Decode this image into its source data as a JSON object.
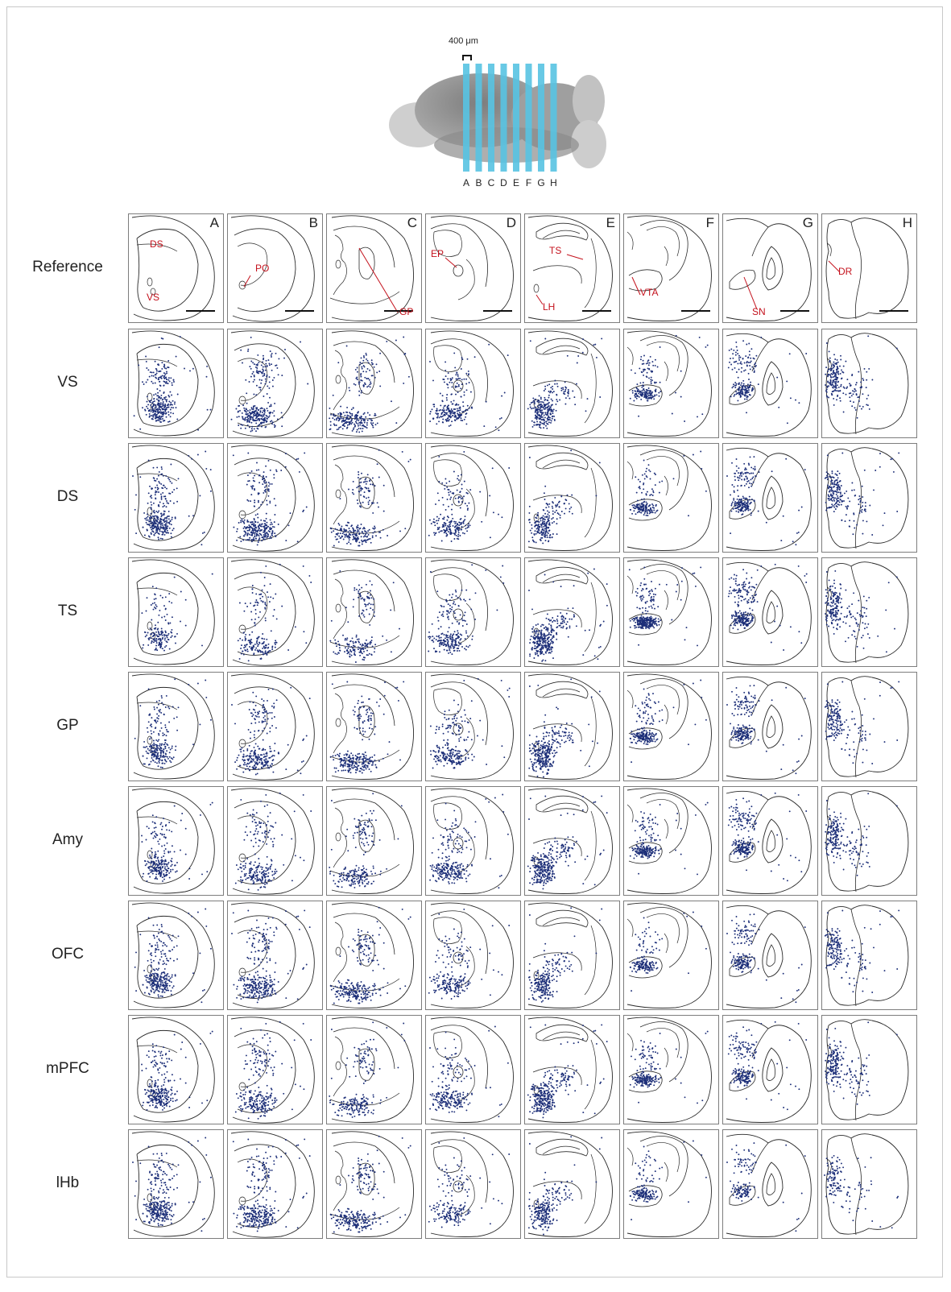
{
  "overview": {
    "scale_label": "400 μm",
    "section_labels": [
      "A",
      "B",
      "C",
      "D",
      "E",
      "F",
      "G",
      "H"
    ],
    "band_color": "#58c3e2"
  },
  "columns": [
    "A",
    "B",
    "C",
    "D",
    "E",
    "F",
    "G",
    "H"
  ],
  "rows": [
    "Reference",
    "VS",
    "DS",
    "TS",
    "GP",
    "Amy",
    "OFC",
    "mPFC",
    "lHb"
  ],
  "region_labels": {
    "A": [
      "DS",
      "VS"
    ],
    "B": [
      "PO"
    ],
    "C": [
      "GP"
    ],
    "D": [
      "EP"
    ],
    "E": [
      "TS",
      "LH"
    ],
    "F": [
      "VTA"
    ],
    "G": [
      "SN"
    ],
    "H": [
      "DR"
    ]
  },
  "colors": {
    "dots": "#1c2e78",
    "region_label": "#c4121d",
    "outline": "#2a2a2a"
  },
  "dot_density": {
    "VS": [
      1.0,
      1.0,
      0.8,
      0.7,
      0.8,
      0.5,
      0.5,
      0.6
    ],
    "DS": [
      1.0,
      1.0,
      0.7,
      0.6,
      0.6,
      0.4,
      0.6,
      0.6
    ],
    "TS": [
      0.4,
      0.5,
      0.5,
      0.7,
      1.0,
      0.9,
      0.8,
      0.6
    ],
    "GP": [
      0.7,
      0.8,
      0.8,
      0.7,
      1.0,
      0.6,
      0.6,
      0.5
    ],
    "Amy": [
      0.7,
      0.7,
      0.6,
      0.8,
      1.0,
      0.6,
      0.7,
      0.6
    ],
    "OFC": [
      0.9,
      1.0,
      0.8,
      0.6,
      0.7,
      0.4,
      0.5,
      0.5
    ],
    "mPFC": [
      0.8,
      0.8,
      0.6,
      0.7,
      1.0,
      0.6,
      0.6,
      0.6
    ],
    "lHb": [
      1.0,
      1.0,
      0.8,
      0.5,
      0.7,
      0.4,
      0.3,
      0.3
    ]
  }
}
